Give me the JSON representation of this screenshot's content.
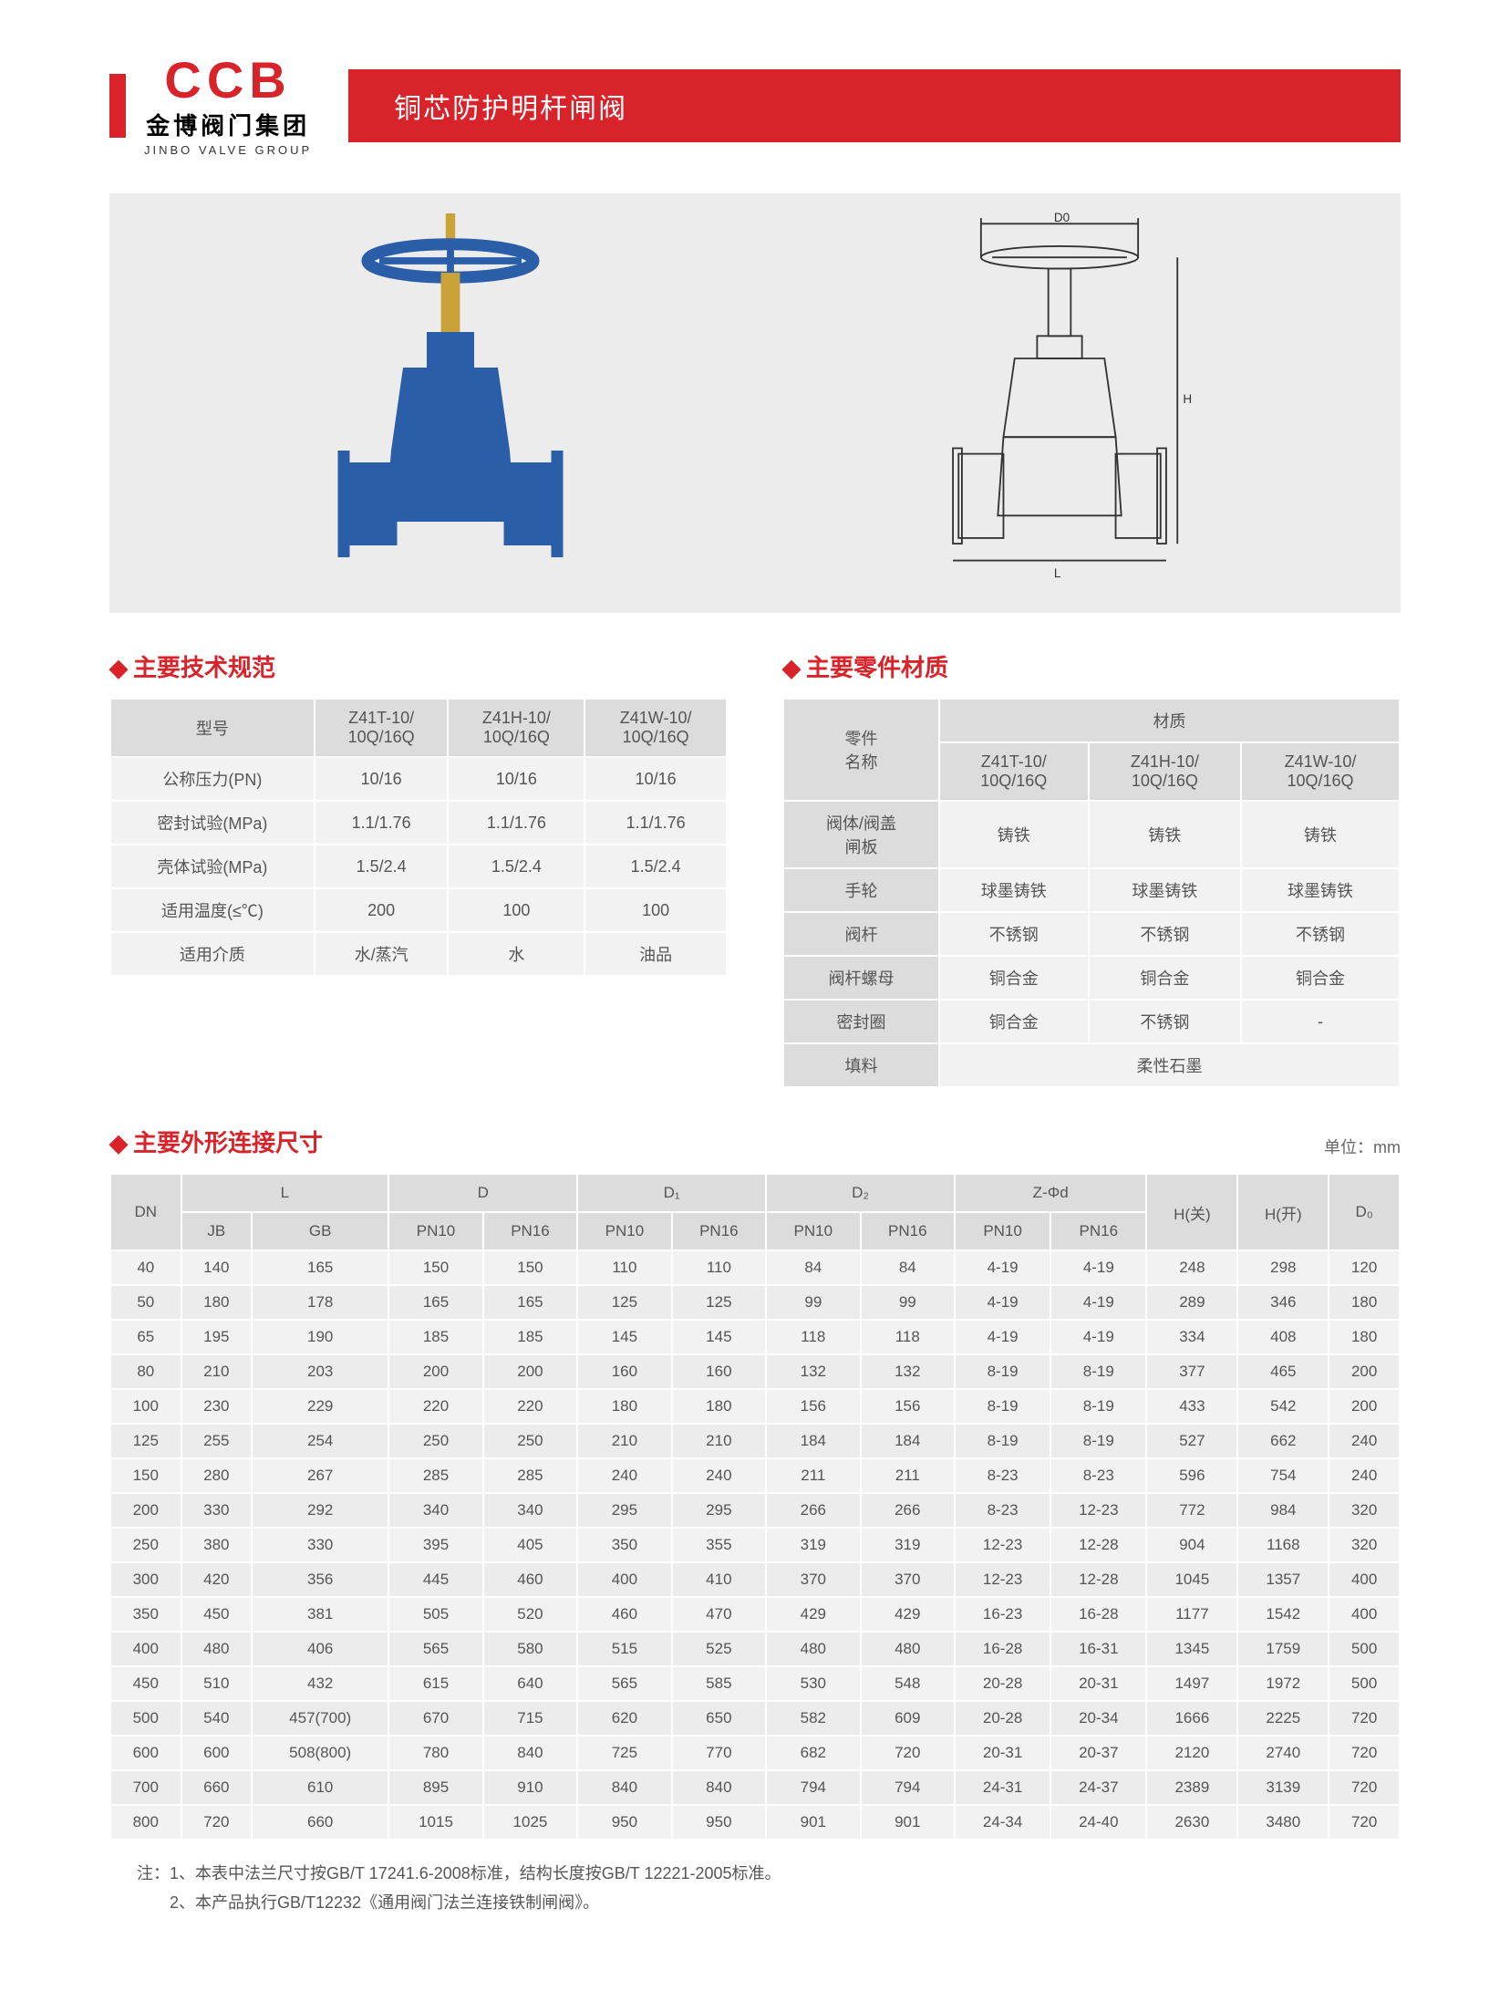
{
  "header": {
    "logo_abbr": "CCB",
    "logo_cn": "金博阀门集团",
    "logo_en": "JINBO VALVE GROUP",
    "title": "铜芯防护明杆闸阀"
  },
  "spec": {
    "title": "主要技术规范",
    "col_header": "型号",
    "models": [
      "Z41T-10/\n10Q/16Q",
      "Z41H-10/\n10Q/16Q",
      "Z41W-10/\n10Q/16Q"
    ],
    "rows": [
      {
        "label": "公称压力(PN)",
        "vals": [
          "10/16",
          "10/16",
          "10/16"
        ]
      },
      {
        "label": "密封试验(MPa)",
        "vals": [
          "1.1/1.76",
          "1.1/1.76",
          "1.1/1.76"
        ]
      },
      {
        "label": "壳体试验(MPa)",
        "vals": [
          "1.5/2.4",
          "1.5/2.4",
          "1.5/2.4"
        ]
      },
      {
        "label": "适用温度(≤℃)",
        "vals": [
          "200",
          "100",
          "100"
        ]
      },
      {
        "label": "适用介质",
        "vals": [
          "水/蒸汽",
          "水",
          "油品"
        ]
      }
    ]
  },
  "material": {
    "title": "主要零件材质",
    "part_label": "零件\n名称",
    "mat_label": "材质",
    "models": [
      "Z41T-10/\n10Q/16Q",
      "Z41H-10/\n10Q/16Q",
      "Z41W-10/\n10Q/16Q"
    ],
    "rows": [
      {
        "label": "阀体/阀盖\n闸板",
        "vals": [
          "铸铁",
          "铸铁",
          "铸铁"
        ]
      },
      {
        "label": "手轮",
        "vals": [
          "球墨铸铁",
          "球墨铸铁",
          "球墨铸铁"
        ]
      },
      {
        "label": "阀杆",
        "vals": [
          "不锈钢",
          "不锈钢",
          "不锈钢"
        ]
      },
      {
        "label": "阀杆螺母",
        "vals": [
          "铜合金",
          "铜合金",
          "铜合金"
        ]
      },
      {
        "label": "密封圈",
        "vals": [
          "铜合金",
          "不锈钢",
          "-"
        ]
      },
      {
        "label": "填料",
        "vals": [
          "柔性石墨"
        ],
        "span": 3
      }
    ]
  },
  "dimensions": {
    "title": "主要外形连接尺寸",
    "unit": "单位：mm",
    "top_headers": [
      "DN",
      "L",
      "D",
      "D₁",
      "D₂",
      "Z-Φd",
      "H(关)",
      "H(开)",
      "D₀"
    ],
    "sub_headers": [
      "JB",
      "GB",
      "PN10",
      "PN16",
      "PN10",
      "PN16",
      "PN10",
      "PN16",
      "PN10",
      "PN16"
    ],
    "rows": [
      [
        "40",
        "140",
        "165",
        "150",
        "150",
        "110",
        "110",
        "84",
        "84",
        "4-19",
        "4-19",
        "248",
        "298",
        "120"
      ],
      [
        "50",
        "180",
        "178",
        "165",
        "165",
        "125",
        "125",
        "99",
        "99",
        "4-19",
        "4-19",
        "289",
        "346",
        "180"
      ],
      [
        "65",
        "195",
        "190",
        "185",
        "185",
        "145",
        "145",
        "118",
        "118",
        "4-19",
        "4-19",
        "334",
        "408",
        "180"
      ],
      [
        "80",
        "210",
        "203",
        "200",
        "200",
        "160",
        "160",
        "132",
        "132",
        "8-19",
        "8-19",
        "377",
        "465",
        "200"
      ],
      [
        "100",
        "230",
        "229",
        "220",
        "220",
        "180",
        "180",
        "156",
        "156",
        "8-19",
        "8-19",
        "433",
        "542",
        "200"
      ],
      [
        "125",
        "255",
        "254",
        "250",
        "250",
        "210",
        "210",
        "184",
        "184",
        "8-19",
        "8-19",
        "527",
        "662",
        "240"
      ],
      [
        "150",
        "280",
        "267",
        "285",
        "285",
        "240",
        "240",
        "211",
        "211",
        "8-23",
        "8-23",
        "596",
        "754",
        "240"
      ],
      [
        "200",
        "330",
        "292",
        "340",
        "340",
        "295",
        "295",
        "266",
        "266",
        "8-23",
        "12-23",
        "772",
        "984",
        "320"
      ],
      [
        "250",
        "380",
        "330",
        "395",
        "405",
        "350",
        "355",
        "319",
        "319",
        "12-23",
        "12-28",
        "904",
        "1168",
        "320"
      ],
      [
        "300",
        "420",
        "356",
        "445",
        "460",
        "400",
        "410",
        "370",
        "370",
        "12-23",
        "12-28",
        "1045",
        "1357",
        "400"
      ],
      [
        "350",
        "450",
        "381",
        "505",
        "520",
        "460",
        "470",
        "429",
        "429",
        "16-23",
        "16-28",
        "1177",
        "1542",
        "400"
      ],
      [
        "400",
        "480",
        "406",
        "565",
        "580",
        "515",
        "525",
        "480",
        "480",
        "16-28",
        "16-31",
        "1345",
        "1759",
        "500"
      ],
      [
        "450",
        "510",
        "432",
        "615",
        "640",
        "565",
        "585",
        "530",
        "548",
        "20-28",
        "20-31",
        "1497",
        "1972",
        "500"
      ],
      [
        "500",
        "540",
        "457(700)",
        "670",
        "715",
        "620",
        "650",
        "582",
        "609",
        "20-28",
        "20-34",
        "1666",
        "2225",
        "720"
      ],
      [
        "600",
        "600",
        "508(800)",
        "780",
        "840",
        "725",
        "770",
        "682",
        "720",
        "20-31",
        "20-37",
        "2120",
        "2740",
        "720"
      ],
      [
        "700",
        "660",
        "610",
        "895",
        "910",
        "840",
        "840",
        "794",
        "794",
        "24-31",
        "24-37",
        "2389",
        "3139",
        "720"
      ],
      [
        "800",
        "720",
        "660",
        "1015",
        "1025",
        "950",
        "950",
        "901",
        "901",
        "24-34",
        "24-40",
        "2630",
        "3480",
        "720"
      ]
    ]
  },
  "notes": {
    "line1": "注：1、本表中法兰尺寸按GB/T 17241.6-2008标准，结构长度按GB/T 12221-2005标准。",
    "line2": "　　2、本产品执行GB/T12232《通用阀门法兰连接铁制闸阀》。"
  },
  "colors": {
    "accent": "#d8232a",
    "th_bg": "#dcdcdc",
    "td_bg": "#f2f2f2",
    "td_bg_alt": "#ececec",
    "image_bg": "#ececec"
  }
}
